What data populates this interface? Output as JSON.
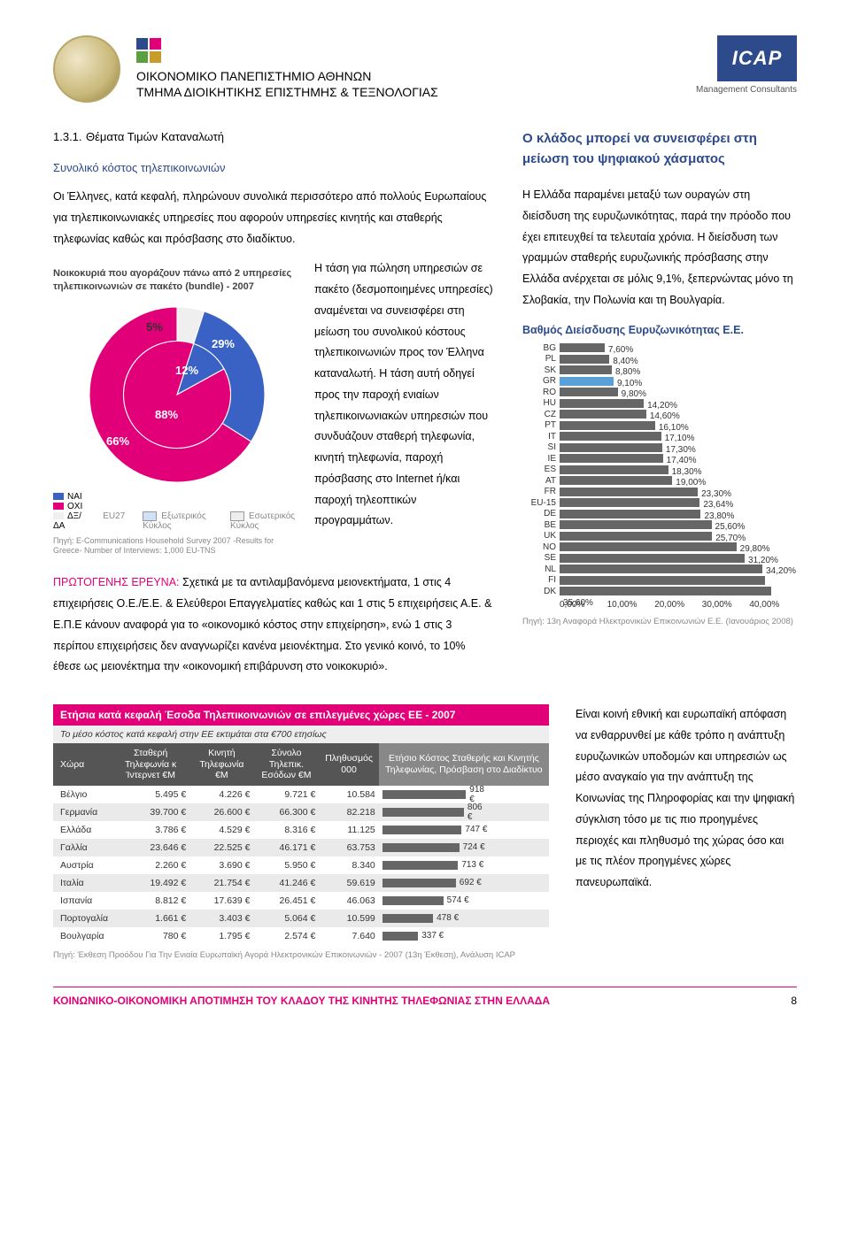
{
  "header": {
    "uni_line1": "ΟΙΚΟΝΟΜΙΚΟ ΠΑΝΕΠΙΣΤΗΜΙΟ ΑΘΗΝΩΝ",
    "uni_line2": "ΤΜΗΜΑ ΔΙΟΙΚΗΤΙΚΗΣ ΕΠΙΣΤΗΜΗΣ & ΤΕΞΝΟΛΟΓΙΑΣ",
    "icap": "ICAP",
    "icap_sub": "Management Consultants",
    "squares_colors": [
      "#2d4a8a",
      "#e20079",
      "#5aa043",
      "#c79c2a"
    ]
  },
  "section": {
    "num": "1.3.1.",
    "title": "Θέματα Τιμών Καταναλωτή",
    "subheading": "Συνολικό κόστος τηλεπικοινωνιών",
    "intro": "Οι Έλληνες, κατά κεφαλή, πληρώνουν συνολικά περισσότερο από πολλούς Ευρωπαίους για τηλεπικοινωνιακές υπηρεσίες που αφορούν υπηρεσίες κινητής και σταθερής τηλεφωνίας καθώς και πρόσβασης στο διαδίκτυο."
  },
  "pie": {
    "title": "Νοικοκυριά που αγοράζουν πάνω από 2 υπηρεσίες τηλεπικοινωνιών σε πακέτο (bundle) - 2007",
    "outer_colors": {
      "yes": "#3a62c4",
      "no": "#e20079",
      "dk": "#efefef"
    },
    "outer_values": {
      "yes": 29,
      "no": 66,
      "dk": 5
    },
    "inner_colors": {
      "yes": "#3a62c4",
      "no": "#e20079"
    },
    "inner_values": {
      "yes": 12,
      "no": 88
    },
    "labels": {
      "yes": "29%",
      "no": "66%",
      "yes_in": "12%",
      "no_in": "88%",
      "dk": "5%"
    },
    "legend_left": {
      "yes": "ΝΑΙ",
      "no": "ΟΧΙ",
      "dk": "ΔΞ/ΔΑ"
    },
    "legend_bottom": {
      "eu27": "EU27",
      "outer": "Εξωτερικός Κύκλος",
      "inner": "Εσωτερικός Κύκλος"
    },
    "source": "Πηγή: E-Communications Household Survey 2007 -Results for Greece- Number of Interviews: 1,000 EU-TNS",
    "side_text": "Η τάση για πώληση υπηρεσιών σε πακέτο (δεσμοποιημένες υπηρεσίες) αναμένεται να συνεισφέρει στη μείωση του συνολικού κόστους τηλεπικοινωνιών προς τον Έλληνα καταναλωτή. Η τάση αυτή οδηγεί προς την παροχή ενιαίων τηλεπικοινωνιακών υπηρεσιών που συνδυάζουν σταθερή τηλεφωνία, κινητή τηλεφωνία, παροχή πρόσβασης στο Internet ή/και παροχή τηλεοπτικών προγραμμάτων."
  },
  "primary_research": {
    "label": "ΠΡΩΤΟΓΕΝΗΣ ΕΡΕΥΝΑ:",
    "text": " Σχετικά με τα αντιλαμβανόμενα μειονεκτήματα, 1 στις 4 επιχειρήσεις Ο.Ε./Ε.Ε. & Ελεύθεροι Επαγγελματίες καθώς και 1 στις 5 επιχειρήσεις Α.Ε. & Ε.Π.Ε κάνουν αναφορά για το «οικονομικό κόστος στην επιχείρηση», ενώ 1 στις 3 περίπου επιχειρήσεις δεν αναγνωρίζει κανένα μειονέκτημα. Στο γενικό κοινό, το 10% έθεσε ως μειονέκτημα την «οικονομική επιβάρυνση στο νοικοκυριό»."
  },
  "right": {
    "lead": "Ο κλάδος μπορεί να συνεισφέρει στη μείωση του ψηφιακού χάσματος",
    "para": "Η Ελλάδα παραμένει μεταξύ των ουραγών στη διείσδυση της ευρυζωνικότητας, παρά την πρόοδο που έχει επιτευχθεί τα τελευταία χρόνια. Η διείσδυση των γραμμών σταθερής ευρυζωνικής πρόσβασης στην Ελλάδα ανέρχεται σε μόλις 9,1%, ξεπερνώντας μόνο τη Σλοβακία, την Πολωνία και τη Βουλγαρία."
  },
  "broadband_chart": {
    "title": "Βαθμός Διείσδυσης Ευρυζωνικότητας Ε.Ε.",
    "xmax": 40,
    "xticks": [
      "0,00%",
      "10,00%",
      "20,00%",
      "30,00%",
      "40,00%"
    ],
    "default_color": "#666666",
    "highlight_color": "#5aa0d8",
    "rows": [
      {
        "label": "BG",
        "val": 7.6,
        "txt": "7,60%"
      },
      {
        "label": "PL",
        "val": 8.4,
        "txt": "8,40%"
      },
      {
        "label": "SK",
        "val": 8.8,
        "txt": "8,80%"
      },
      {
        "label": "GR",
        "val": 9.1,
        "txt": "9,10%",
        "hl": true
      },
      {
        "label": "RO",
        "val": 9.8,
        "txt": "9,80%"
      },
      {
        "label": "HU",
        "val": 14.2,
        "txt": "14,20%"
      },
      {
        "label": "CZ",
        "val": 14.6,
        "txt": "14,60%"
      },
      {
        "label": "PT",
        "val": 16.1,
        "txt": "16,10%"
      },
      {
        "label": "IT",
        "val": 17.1,
        "txt": "17,10%"
      },
      {
        "label": "SI",
        "val": 17.3,
        "txt": "17,30%"
      },
      {
        "label": "IE",
        "val": 17.4,
        "txt": "17,40%"
      },
      {
        "label": "ES",
        "val": 18.3,
        "txt": "18,30%"
      },
      {
        "label": "AT",
        "val": 19.0,
        "txt": "19,00%"
      },
      {
        "label": "FR",
        "val": 23.3,
        "txt": "23,30%"
      },
      {
        "label": "EU-15",
        "val": 23.64,
        "txt": "23,64%"
      },
      {
        "label": "DE",
        "val": 23.8,
        "txt": "23,80%"
      },
      {
        "label": "BE",
        "val": 25.6,
        "txt": "25,60%"
      },
      {
        "label": "UK",
        "val": 25.7,
        "txt": "25,70%"
      },
      {
        "label": "NO",
        "val": 29.8,
        "txt": "29,80%"
      },
      {
        "label": "SE",
        "val": 31.2,
        "txt": "31,20%"
      },
      {
        "label": "NL",
        "val": 34.2,
        "txt": "34,20%"
      },
      {
        "label": "FI",
        "val": 34.6,
        "txt": "34,60%"
      },
      {
        "label": "DK",
        "val": 35.6,
        "txt": "35,60%"
      }
    ],
    "source": "Πηγή: 13η Αναφορά Ηλεκτρονικών Επικοινωνιών Ε.Ε. (Ιανουάριος 2008)"
  },
  "revenue_table": {
    "title": "Ετήσια κατά κεφαλή Έσοδα Τηλεπικοινωνιών σε επιλεγμένες χώρες ΕΕ - 2007",
    "subtitle": "Το μέσο κόστος κατά κεφαλή στην ΕΕ εκτιμάται στα €700 ετησίως",
    "headers": {
      "country": "Χώρα",
      "fixed": "Σταθερή Τηλεφωνία κ Ίντερνετ €Μ",
      "mobile": "Κινητή Τηλεφωνία €Μ",
      "total": "Σύνολο Τηλεπικ. Εσόδων €Μ",
      "pop": "Πληθυσμός 000",
      "bar": "Ετήσιο Κόστος Σταθερής και Κινητής Τηλεφωνίας, Πρόσβαση στο Διαδίκτυο"
    },
    "bar_max": 1000,
    "bar_color": "#666666",
    "rows": [
      {
        "c": "Βέλγιο",
        "f": "5.495 €",
        "m": "4.226 €",
        "t": "9.721 €",
        "p": "10.584",
        "bv": 918,
        "bt": "918 €"
      },
      {
        "c": "Γερμανία",
        "f": "39.700 €",
        "m": "26.600 €",
        "t": "66.300 €",
        "p": "82.218",
        "bv": 806,
        "bt": "806 €"
      },
      {
        "c": "Ελλάδα",
        "f": "3.786 €",
        "m": "4.529 €",
        "t": "8.316 €",
        "p": "11.125",
        "bv": 747,
        "bt": "747 €"
      },
      {
        "c": "Γαλλία",
        "f": "23.646 €",
        "m": "22.525 €",
        "t": "46.171 €",
        "p": "63.753",
        "bv": 724,
        "bt": "724 €"
      },
      {
        "c": "Αυστρία",
        "f": "2.260 €",
        "m": "3.690 €",
        "t": "5.950 €",
        "p": "8.340",
        "bv": 713,
        "bt": "713 €"
      },
      {
        "c": "Ιταλία",
        "f": "19.492 €",
        "m": "21.754 €",
        "t": "41.246 €",
        "p": "59.619",
        "bv": 692,
        "bt": "692 €"
      },
      {
        "c": "Ισπανία",
        "f": "8.812 €",
        "m": "17.639 €",
        "t": "26.451 €",
        "p": "46.063",
        "bv": 574,
        "bt": "574 €"
      },
      {
        "c": "Πορτογαλία",
        "f": "1.661 €",
        "m": "3.403 €",
        "t": "5.064 €",
        "p": "10.599",
        "bv": 478,
        "bt": "478 €"
      },
      {
        "c": "Βουλγαρία",
        "f": "780 €",
        "m": "1.795 €",
        "t": "2.574 €",
        "p": "7.640",
        "bv": 337,
        "bt": "337 €"
      }
    ],
    "source": "Πηγή: Έκθεση Προόδου Για Την Ενιαία Ευρωπαϊκή Αγορά Ηλεκτρονικών Επικοινωνιών - 2007 (13η Έκθεση), Ανάλυση ICAP",
    "right_text": "Είναι κοινή εθνική και ευρωπαϊκή απόφαση να ενθαρρυνθεί με κάθε τρόπο η ανάπτυξη ευρυζωνικών υποδομών και υπηρεσιών ως μέσο αναγκαίο για την ανάπτυξη της Κοινωνίας της Πληροφορίας και την ψηφιακή σύγκλιση τόσο με τις πιο προηγμένες περιοχές και πληθυσμό της χώρας όσο και με τις πλέον προηγμένες χώρες πανευρωπαϊκά."
  },
  "footer": {
    "text": "ΚΟΙΝΩΝΙΚΟ-ΟΙΚΟΝΟΜΙΚΗ ΑΠΟΤΙΜΗΣΗ ΤΟΥ ΚΛΑΔΟΥ ΤΗΣ ΚΙΝΗΤΗΣ ΤΗΛΕΦΩΝΙΑΣ ΣΤΗΝ ΕΛΛΑΔΑ",
    "page": "8"
  }
}
